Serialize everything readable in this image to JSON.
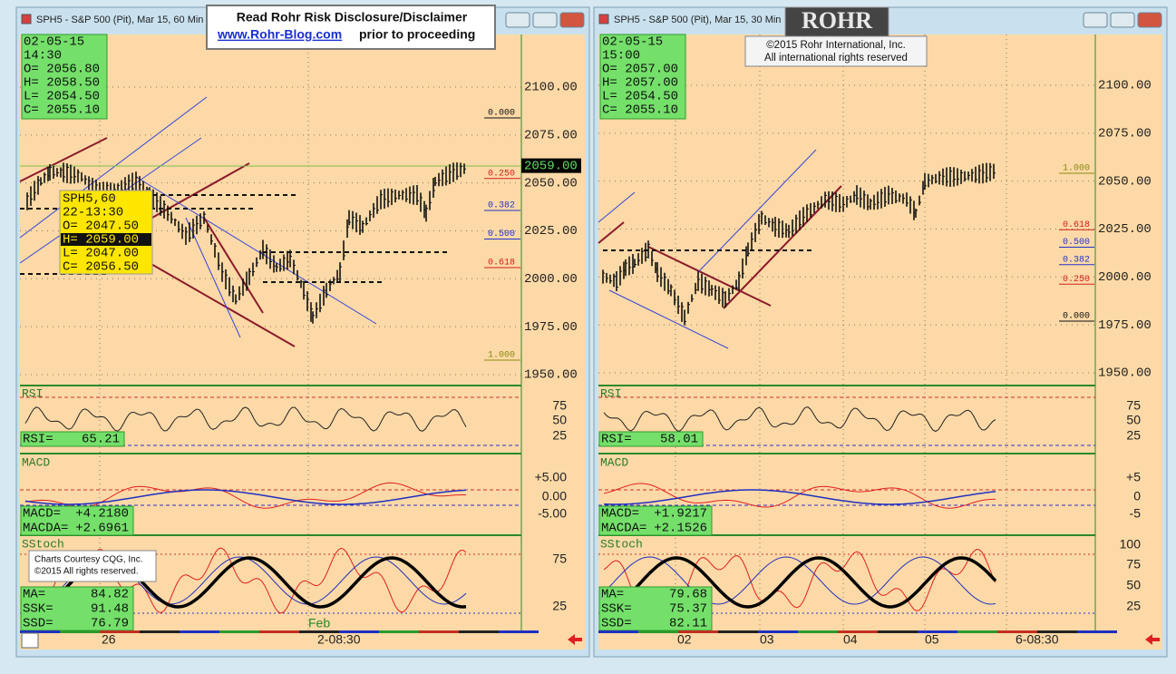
{
  "banner": {
    "line1": "Read Rohr Risk Disclosure/Disclaimer",
    "link": "www.Rohr-Blog.com",
    "line2": "prior to proceeding"
  },
  "windows": [
    {
      "title": "SPH5 - S&P 500 (Pit), Mar 15, 60 Min",
      "info": [
        "02-05-15",
        "14:30",
        "O= 2056.80",
        "H= 2058.50",
        "L= 2054.50",
        "C= 2055.10"
      ],
      "tooltip": [
        "SPH5,60",
        "22-13:30",
        "O= 2047.50",
        "H= 2059.00",
        "L= 2047.00",
        "C= 2056.50"
      ],
      "price_ticks": [
        {
          "value": 2100,
          "label": "2100.00"
        },
        {
          "value": 2075,
          "label": "2075.00"
        },
        {
          "value": 2050,
          "label": "2050.00"
        },
        {
          "value": 2025,
          "label": "2025.00"
        },
        {
          "value": 2000,
          "label": "2000.00"
        },
        {
          "value": 1975,
          "label": "1975.00"
        },
        {
          "value": 1950,
          "label": "1950.00"
        }
      ],
      "last_price": {
        "value": 2059,
        "label": "2059.00"
      },
      "fib": [
        {
          "value": 0,
          "label": "0.000"
        },
        {
          "value": 0.25,
          "label": "0.250"
        },
        {
          "value": 0.382,
          "label": "0.382"
        },
        {
          "value": 0.5,
          "label": "0.500"
        },
        {
          "value": 0.618,
          "label": "0.618"
        },
        {
          "value": 1,
          "label": "1.000"
        }
      ],
      "rsi": {
        "label": "RSI",
        "readout": [
          [
            "RSI=",
            "65.21"
          ]
        ],
        "ticks": [
          "75",
          "50",
          "25"
        ]
      },
      "macd": {
        "label": "MACD",
        "readout": [
          [
            "MACD=",
            "+4.2180"
          ],
          [
            "MACDA=",
            "+2.6961"
          ]
        ],
        "ticks": [
          "+5.00",
          "0.00",
          "-5.00"
        ]
      },
      "sstoch": {
        "label": "SStoch",
        "readout": [
          [
            "MA=",
            "84.82"
          ],
          [
            "SSK=",
            "91.48"
          ],
          [
            "SSD=",
            "76.79"
          ]
        ],
        "ticks": [
          "75",
          "25"
        ]
      },
      "dates": [
        "26",
        "Feb",
        "2-08:30"
      ],
      "credit": [
        "Charts Courtesy CQG, Inc.",
        "©2015 All rights reserved."
      ]
    },
    {
      "title": "SPH5 - S&P 500 (Pit), Mar 15, 30 Min",
      "logo": "ROHR",
      "copyright": [
        "©2015 Rohr International, Inc.",
        "All international rights reserved"
      ],
      "info": [
        "02-05-15",
        "15:00",
        "O= 2057.00",
        "H= 2057.00",
        "L= 2054.50",
        "C= 2055.10"
      ],
      "price_ticks": [
        {
          "value": 2100,
          "label": "2100.00"
        },
        {
          "value": 2075,
          "label": "2075.00"
        },
        {
          "value": 2050,
          "label": "2050.00"
        },
        {
          "value": 2025,
          "label": "2025.00"
        },
        {
          "value": 2000,
          "label": "2000.00"
        },
        {
          "value": 1975,
          "label": "1975.00"
        },
        {
          "value": 1950,
          "label": "1950.00"
        }
      ],
      "fib": [
        {
          "value": 1,
          "label": "1.000"
        },
        {
          "value": 0.618,
          "label": "0.618"
        },
        {
          "value": 0.5,
          "label": "0.500"
        },
        {
          "value": 0.382,
          "label": "0.382"
        },
        {
          "value": 0.25,
          "label": "0.250"
        },
        {
          "value": 0,
          "label": "0.000"
        }
      ],
      "rsi": {
        "label": "RSI",
        "readout": [
          [
            "RSI=",
            "58.01"
          ]
        ],
        "ticks": [
          "75",
          "50",
          "25"
        ]
      },
      "macd": {
        "label": "MACD",
        "readout": [
          [
            "MACD=",
            "+1.9217"
          ],
          [
            "MACDA=",
            "+2.1526"
          ]
        ],
        "ticks": [
          "+5",
          "0",
          "-5"
        ]
      },
      "sstoch": {
        "label": "SStoch",
        "readout": [
          [
            "MA=",
            "79.68"
          ],
          [
            "SSK=",
            "75.37"
          ],
          [
            "SSD=",
            "82.11"
          ]
        ],
        "ticks": [
          "100",
          "75",
          "50",
          "25"
        ]
      },
      "dates": [
        "02",
        "03",
        "04",
        "05",
        "6-08:30"
      ]
    }
  ]
}
